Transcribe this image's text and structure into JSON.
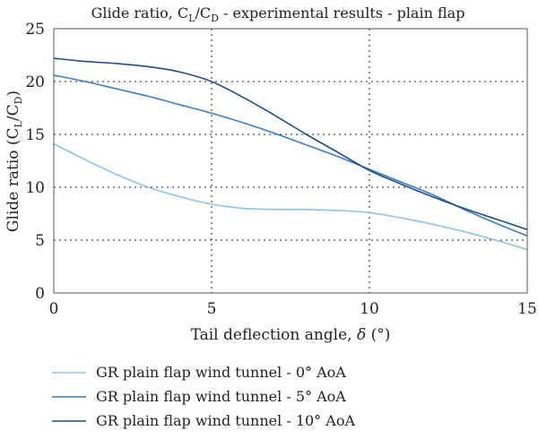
{
  "chart_data": {
    "type": "line",
    "title": {
      "pre": "Glide ratio, C",
      "sub1": "L",
      "mid": "/C",
      "sub2": "D",
      "post": " - experimental results - plain flap"
    },
    "xlabel": {
      "pre": "Tail deflection angle, ",
      "symbol": "δ",
      "post": " (°)"
    },
    "ylabel": {
      "pre": "Glide ratio (C",
      "sub1": "L",
      "mid": "/C",
      "sub2": "D",
      "post": ")"
    },
    "xlim": [
      0,
      15
    ],
    "ylim": [
      0,
      25
    ],
    "x_ticks": [
      "0",
      "5",
      "10",
      "15"
    ],
    "y_ticks": [
      "0",
      "5",
      "10",
      "15",
      "20",
      "25"
    ],
    "grid": "dotted",
    "legend_position": "bottom",
    "series": [
      {
        "name": "GR plain flap wind tunnel - 0° AoA",
        "color": "#8ec3e6",
        "points": [
          [
            0,
            14.1
          ],
          [
            1,
            12.6
          ],
          [
            2,
            11.2
          ],
          [
            3,
            10.0
          ],
          [
            4,
            9.1
          ],
          [
            5,
            8.4
          ],
          [
            6,
            8.0
          ],
          [
            7,
            7.9
          ],
          [
            8,
            7.9
          ],
          [
            9,
            7.8
          ],
          [
            10,
            7.6
          ],
          [
            11,
            7.1
          ],
          [
            12,
            6.5
          ],
          [
            13,
            5.8
          ],
          [
            14,
            5.0
          ],
          [
            15,
            4.1
          ]
        ]
      },
      {
        "name": "GR plain flap wind tunnel - 5° AoA",
        "color": "#3a7fc1",
        "points": [
          [
            0,
            20.6
          ],
          [
            1,
            20.0
          ],
          [
            2,
            19.3
          ],
          [
            3,
            18.6
          ],
          [
            4,
            17.8
          ],
          [
            5,
            17.0
          ],
          [
            6,
            16.1
          ],
          [
            7,
            15.1
          ],
          [
            8,
            14.0
          ],
          [
            9,
            12.9
          ],
          [
            10,
            11.7
          ],
          [
            11,
            10.5
          ],
          [
            12,
            9.3
          ],
          [
            13,
            7.9
          ],
          [
            14,
            6.6
          ],
          [
            15,
            5.4
          ]
        ]
      },
      {
        "name": "GR plain flap wind tunnel - 10° AoA",
        "color": "#1c4f8a",
        "points": [
          [
            0,
            22.2
          ],
          [
            1,
            21.9
          ],
          [
            2,
            21.7
          ],
          [
            3,
            21.4
          ],
          [
            4,
            20.9
          ],
          [
            5,
            20.0
          ],
          [
            6,
            18.5
          ],
          [
            7,
            16.8
          ],
          [
            8,
            15.0
          ],
          [
            9,
            13.3
          ],
          [
            10,
            11.6
          ],
          [
            11,
            10.3
          ],
          [
            12,
            9.1
          ],
          [
            13,
            8.0
          ],
          [
            14,
            7.0
          ],
          [
            15,
            6.0
          ]
        ]
      }
    ]
  }
}
